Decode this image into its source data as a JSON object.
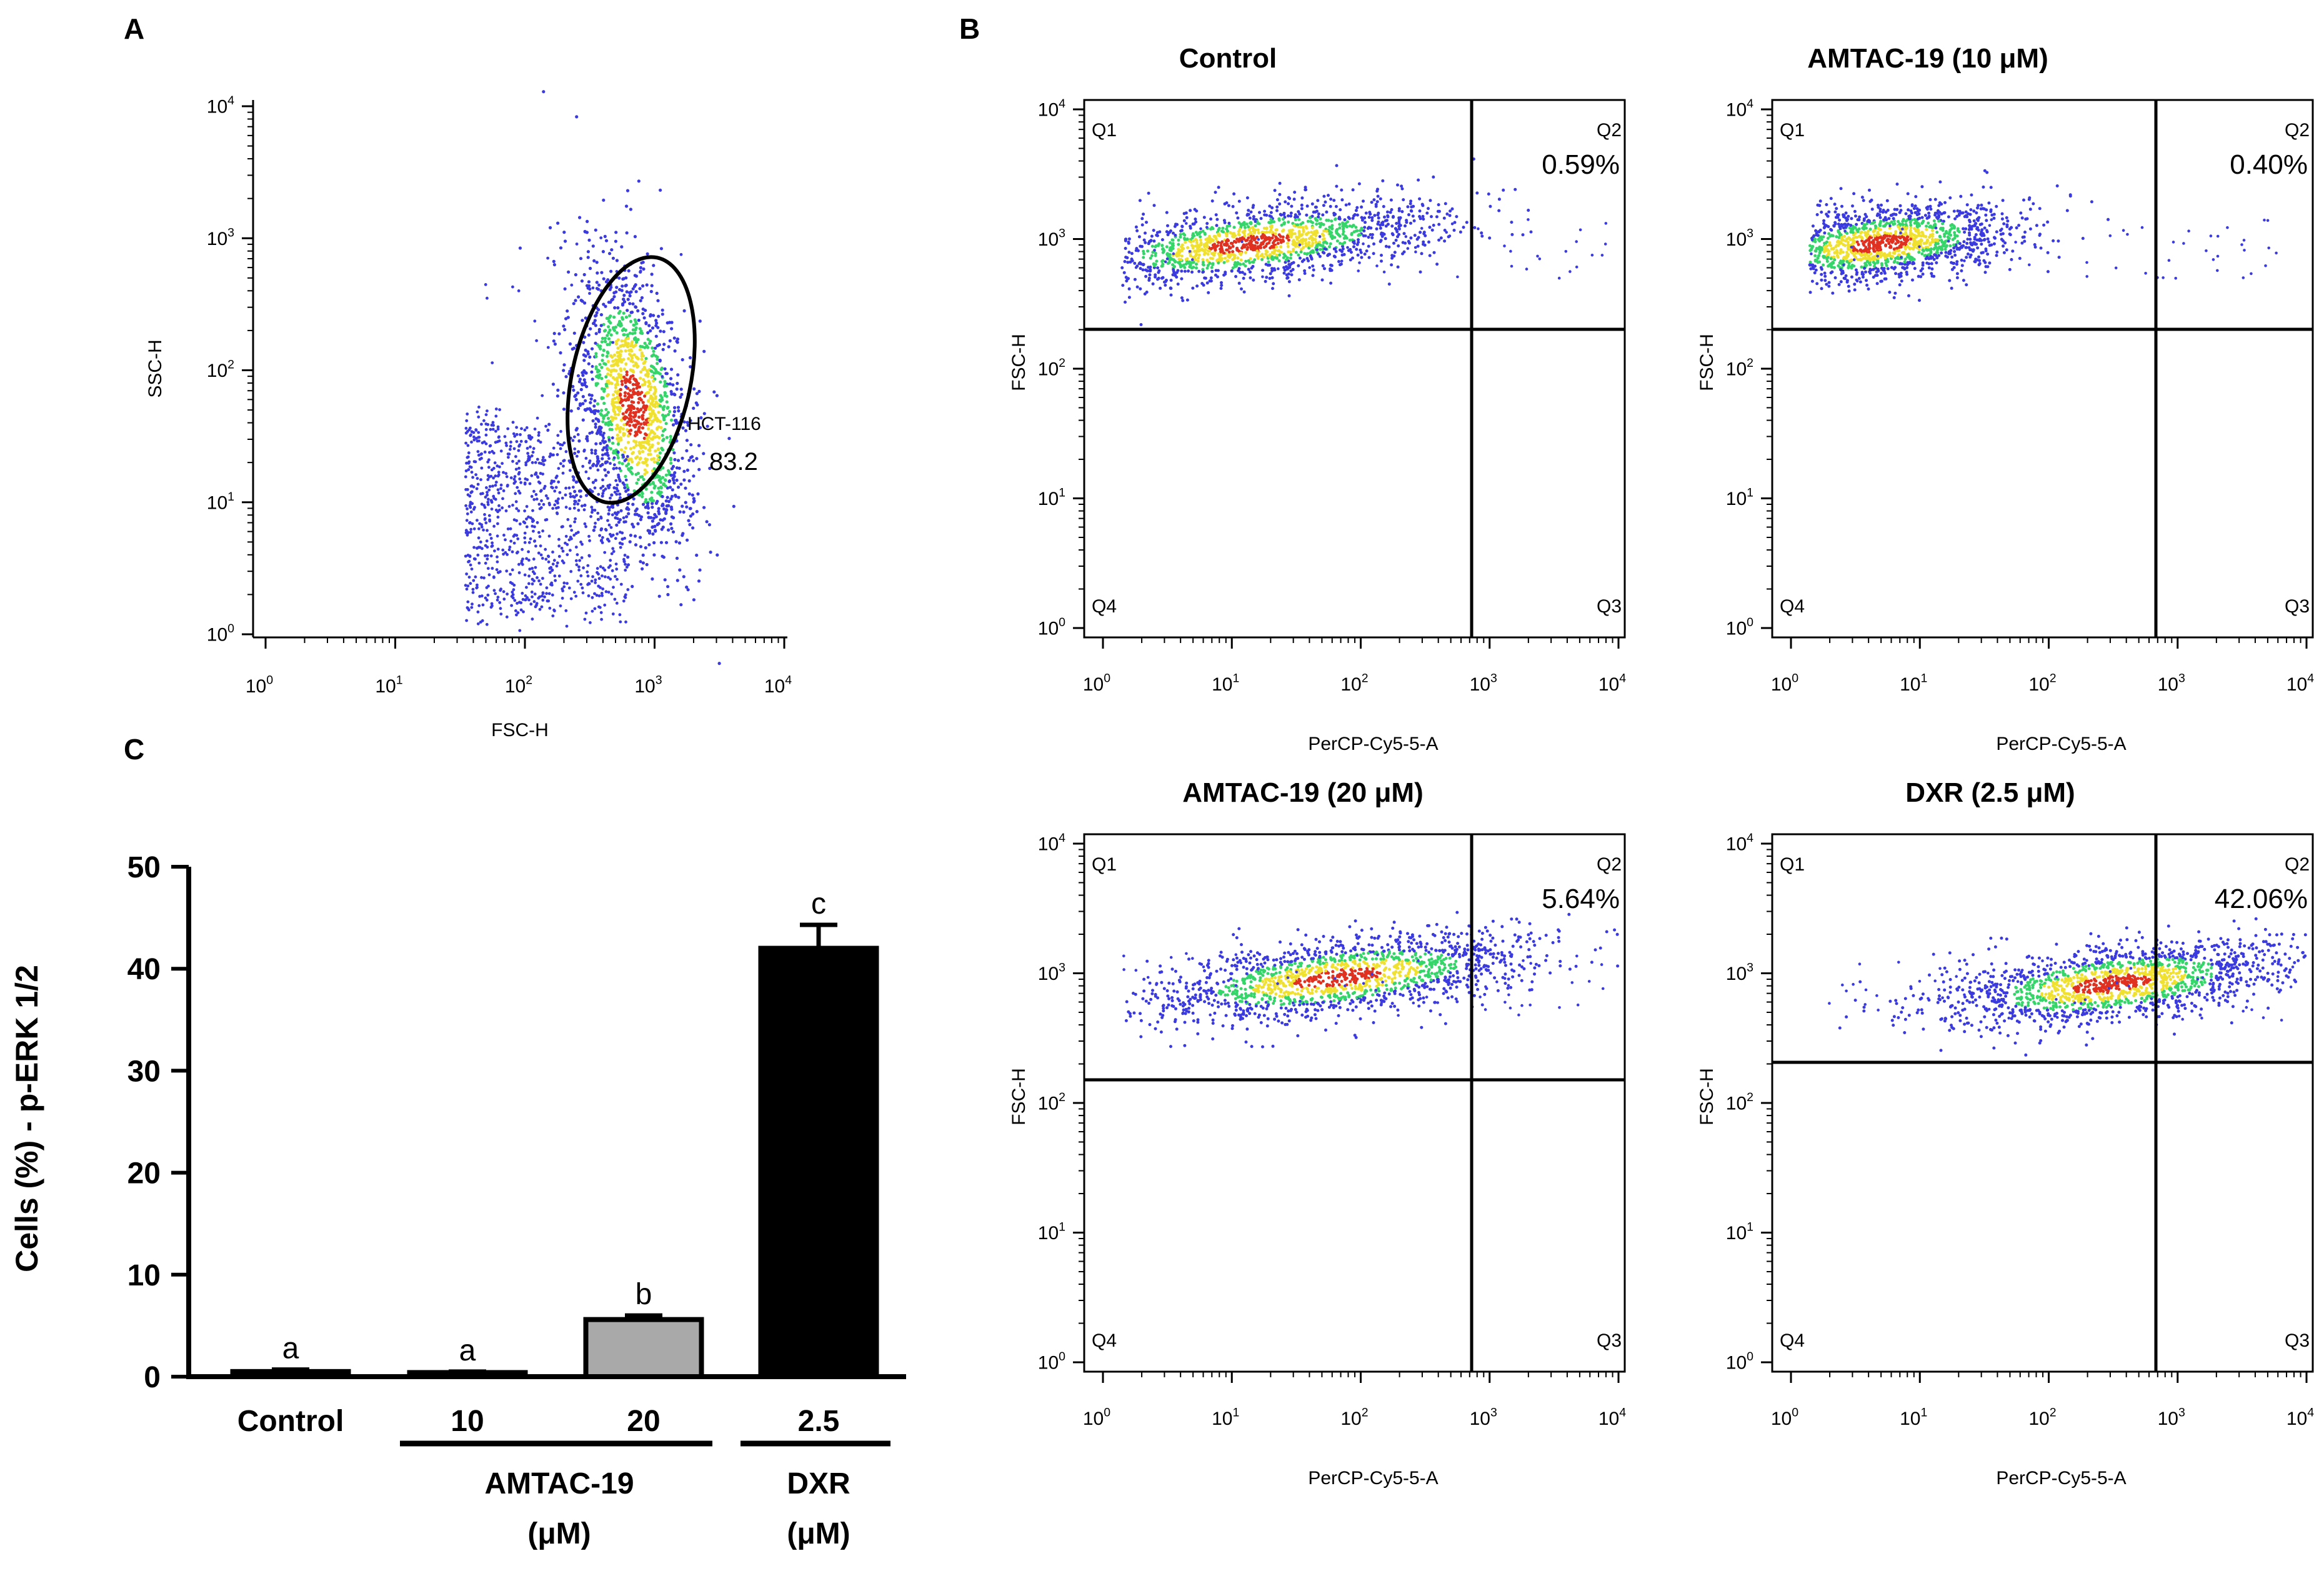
{
  "figure": {
    "panel_labels": {
      "a": "A",
      "b": "B",
      "c": "C"
    }
  },
  "colors": {
    "event_low": "#3a3adf",
    "event_mid": "#35d56a",
    "event_high": "#f0e030",
    "event_peak": "#e03020",
    "bar_control": "#000000",
    "bar_amtac20": "#a9a9a9",
    "bar_dxr": "#000000"
  },
  "panel_a": {
    "x_label": "FSC-H",
    "y_label": "SSC-H",
    "gate_label": "HCT-116",
    "gate_value": "83.2",
    "x_ticks": [
      "10",
      "10",
      "10",
      "10",
      "10"
    ],
    "x_exps": [
      "0",
      "1",
      "2",
      "3",
      "4"
    ],
    "y_ticks": [
      "10",
      "10",
      "10",
      "10",
      "10"
    ],
    "y_exps": [
      "0",
      "1",
      "2",
      "3",
      "4"
    ]
  },
  "panel_b": {
    "x_label": "PerCP-Cy5-5-A",
    "y_label": "FSC-H",
    "quadrants": {
      "q1": "Q1",
      "q2": "Q2",
      "q3": "Q3",
      "q4": "Q4"
    },
    "tick_base": "10",
    "tick_exps": [
      "0",
      "1",
      "2",
      "3",
      "4"
    ],
    "plots": [
      {
        "title": "Control",
        "q2_percent": "0.59%"
      },
      {
        "title": "AMTAC-19 (10 μM)",
        "q2_percent": "0.40%"
      },
      {
        "title": "AMTAC-19 (20 μM)",
        "q2_percent": "5.64%"
      },
      {
        "title": "DXR (2.5 μM)",
        "q2_percent": "42.06%"
      }
    ]
  },
  "chart_data": {
    "type": "bar",
    "title": "",
    "ylabel": "Cells (%) - p-ERK 1/2",
    "xlabel": "",
    "ylim": [
      0,
      50
    ],
    "y_ticks": [
      "0",
      "10",
      "20",
      "30",
      "40",
      "50"
    ],
    "categories": [
      "Control",
      "10",
      "20",
      "2.5"
    ],
    "values": [
      0.5,
      0.4,
      5.6,
      42.0
    ],
    "errors": [
      0.2,
      0.1,
      0.4,
      2.3
    ],
    "significance": [
      "a",
      "a",
      "b",
      "c"
    ],
    "groups": [
      {
        "name": "AMTAC-19",
        "unit": "(μM)"
      },
      {
        "name": "DXR",
        "unit": "(μM)"
      }
    ]
  }
}
